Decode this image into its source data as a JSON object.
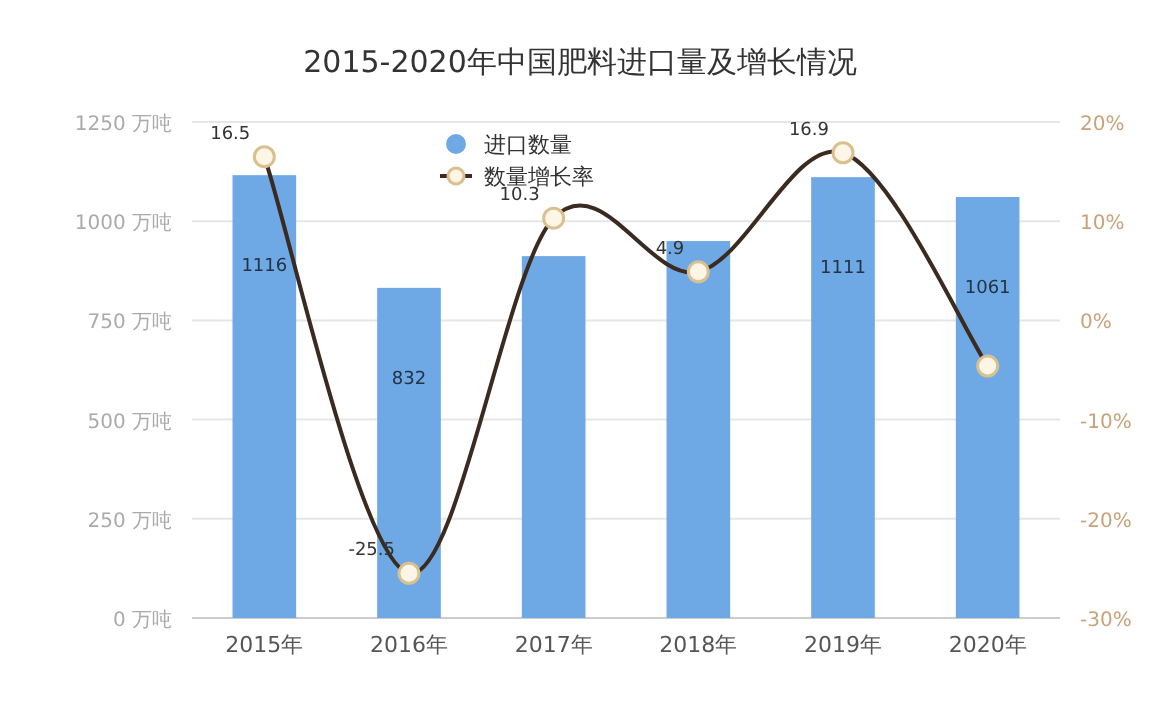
{
  "chart_data": {
    "type": "bar",
    "title": "2015-2020年中国肥料进口量及增长情况",
    "categories": [
      "2015年",
      "2016年",
      "2017年",
      "2018年",
      "2019年",
      "2020年"
    ],
    "series": [
      {
        "name": "进口数量",
        "color": "#6ea9e6",
        "values": [
          1116,
          832,
          912,
          950,
          1111,
          1061
        ],
        "value_labels": [
          "1116",
          "832",
          null,
          null,
          "1111",
          "1061"
        ]
      },
      {
        "name": "数量增长率",
        "type": "line",
        "axis": "y2",
        "color": "#3b2a20",
        "values": [
          16.5,
          -25.5,
          10.3,
          4.9,
          16.9,
          -4.6
        ],
        "value_labels": [
          "16.5",
          "-25.5",
          "10.3",
          "4.9",
          "16.9",
          null
        ]
      }
    ],
    "ylim": [
      0,
      1250
    ],
    "yticks": [
      {
        "value": 0,
        "label": "0 万吨"
      },
      {
        "value": 250,
        "label": "250 万吨"
      },
      {
        "value": 500,
        "label": "500 万吨"
      },
      {
        "value": 750,
        "label": "750 万吨"
      },
      {
        "value": 1000,
        "label": "1000 万吨"
      },
      {
        "value": 1250,
        "label": "1250 万吨"
      }
    ],
    "y2lim": [
      -30,
      20
    ],
    "y2ticks": [
      {
        "value": -30,
        "label": "-30%"
      },
      {
        "value": -20,
        "label": "-20%"
      },
      {
        "value": -10,
        "label": "-10%"
      },
      {
        "value": 0,
        "label": "0%"
      },
      {
        "value": 10,
        "label": "10%"
      },
      {
        "value": 20,
        "label": "20%"
      }
    ],
    "grid": "y",
    "legend": "top",
    "marker": "circle"
  }
}
